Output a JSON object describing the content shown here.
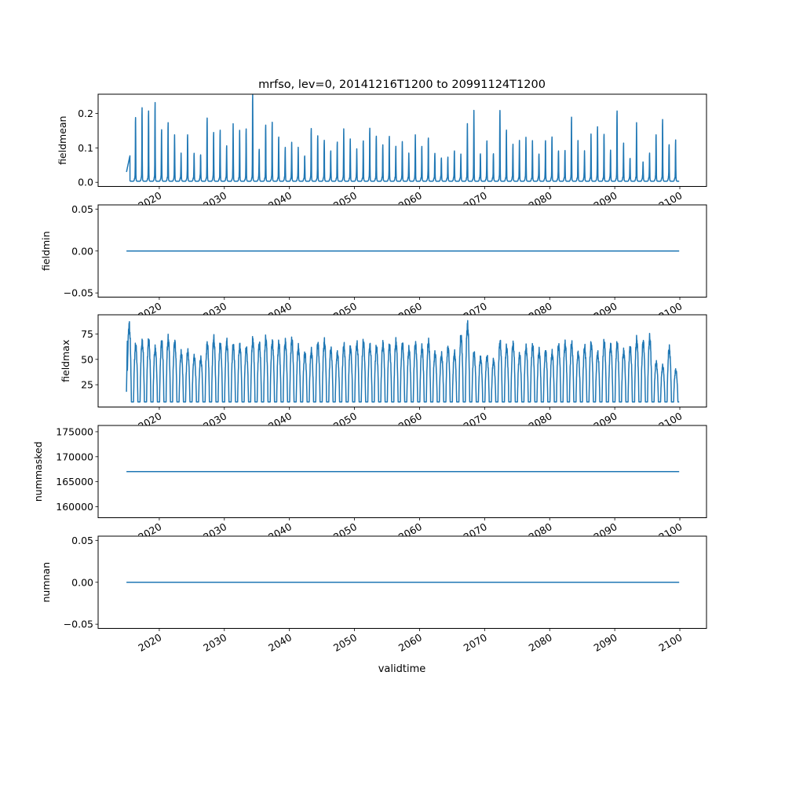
{
  "chart_data": {
    "type": "line",
    "title": "mrfso, lev=0, 20141216T1200 to 20991124T1200",
    "xlabel": "validtime",
    "xlim": [
      2010.6,
      2104.1
    ],
    "x_ticks": [
      "2020",
      "2030",
      "2040",
      "2050",
      "2060",
      "2070",
      "2080",
      "2090",
      "2100"
    ],
    "x_tick_values": [
      2020,
      2030,
      2040,
      2050,
      2060,
      2070,
      2080,
      2090,
      2100
    ],
    "data_start": 2014.96,
    "data_end": 2099.9,
    "color": "#1f77b4",
    "panels": [
      {
        "ylabel": "fieldmean",
        "ylim": [
          -0.012,
          0.256
        ],
        "y_ticks": [
          "0.0",
          "0.1",
          "0.2"
        ],
        "y_tick_values": [
          0,
          0.1,
          0.2
        ],
        "kind": "seasonal_spikes",
        "baseline": 0.003,
        "annual_peaks_from_2015": [
          0.18,
          0.18,
          0.205,
          0.2,
          0.22,
          0.145,
          0.16,
          0.13,
          0.07,
          0.13,
          0.07,
          0.07,
          0.175,
          0.135,
          0.14,
          0.095,
          0.16,
          0.14,
          0.145,
          0.245,
          0.085,
          0.155,
          0.165,
          0.12,
          0.09,
          0.105,
          0.09,
          0.065,
          0.145,
          0.125,
          0.11,
          0.08,
          0.105,
          0.145,
          0.115,
          0.085,
          0.11,
          0.145,
          0.125,
          0.095,
          0.125,
          0.09,
          0.11,
          0.07,
          0.13,
          0.09,
          0.12,
          0.07,
          0.06,
          0.06,
          0.08,
          0.07,
          0.16,
          0.2,
          0.07,
          0.11,
          0.07,
          0.2,
          0.14,
          0.1,
          0.11,
          0.12,
          0.11,
          0.07,
          0.11,
          0.12,
          0.08,
          0.08,
          0.18,
          0.11,
          0.08,
          0.13,
          0.15,
          0.13,
          0.08,
          0.2,
          0.1,
          0.06,
          0.16,
          0.05,
          0.07,
          0.13,
          0.17,
          0.1,
          0.11
        ]
      },
      {
        "ylabel": "fieldmin",
        "ylim": [
          -0.055,
          0.055
        ],
        "y_ticks": [
          "−0.05",
          "0.00",
          "0.05"
        ],
        "y_tick_values": [
          -0.05,
          0,
          0.05
        ],
        "kind": "constant",
        "value": 0
      },
      {
        "ylabel": "fieldmax",
        "ylim": [
          3,
          94
        ],
        "y_ticks": [
          "25",
          "50",
          "75"
        ],
        "y_tick_values": [
          25,
          50,
          75
        ],
        "kind": "seasonal_waves",
        "baseline": 8,
        "annual_peaks_from_2015": [
          90,
          68,
          72,
          73,
          65,
          72,
          75,
          72,
          60,
          62,
          56,
          54,
          70,
          75,
          70,
          72,
          68,
          68,
          65,
          74,
          70,
          75,
          72,
          70,
          72,
          74,
          66,
          60,
          62,
          70,
          72,
          64,
          60,
          68,
          66,
          70,
          72,
          68,
          66,
          70,
          68,
          72,
          70,
          64,
          70,
          66,
          72,
          60,
          58,
          66,
          60,
          78,
          90,
          60,
          55,
          56,
          52,
          72,
          66,
          70,
          58,
          66,
          68,
          62,
          62,
          60,
          68,
          70,
          70,
          60,
          66,
          70,
          60,
          72,
          68,
          70,
          62,
          66,
          74,
          72,
          76,
          50,
          46,
          65,
          42
        ]
      },
      {
        "ylabel": "nummasked",
        "ylim": [
          157800,
          176250
        ],
        "y_ticks": [
          "160000",
          "165000",
          "170000",
          "175000"
        ],
        "y_tick_values": [
          160000,
          165000,
          170000,
          175000
        ],
        "kind": "constant",
        "value": 167040
      },
      {
        "ylabel": "numnan",
        "ylim": [
          -0.055,
          0.055
        ],
        "y_ticks": [
          "−0.05",
          "0.00",
          "0.05"
        ],
        "y_tick_values": [
          -0.05,
          0,
          0.05
        ],
        "kind": "constant",
        "value": 0
      }
    ]
  }
}
